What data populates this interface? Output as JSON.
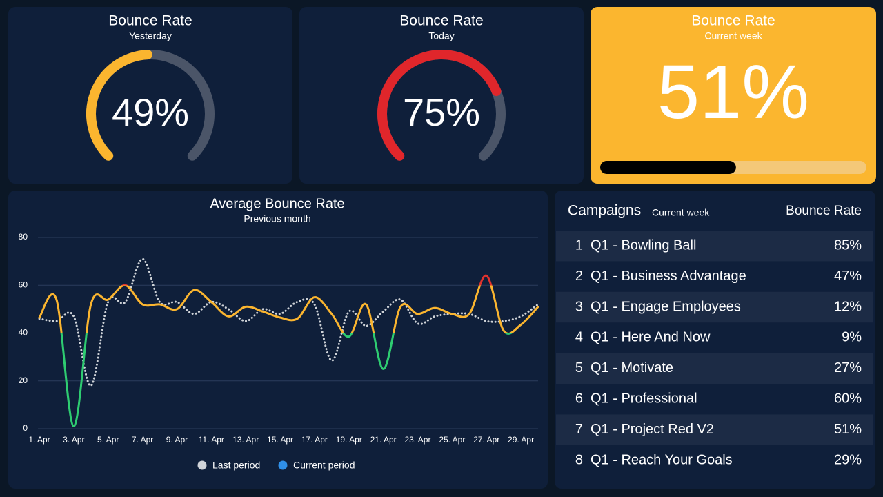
{
  "chart_data": [
    {
      "type": "gauge",
      "title": "Bounce Rate",
      "subtitle": "Yesterday",
      "values": [
        49
      ],
      "value_labels": [
        "49%"
      ],
      "ylim": [
        0,
        100
      ],
      "color": "#fbb52f",
      "track_color": "#4b5568"
    },
    {
      "type": "gauge",
      "title": "Bounce Rate",
      "subtitle": "Today",
      "values": [
        75
      ],
      "value_labels": [
        "75%"
      ],
      "ylim": [
        0,
        100
      ],
      "color": "#e0262b",
      "track_color": "#4b5568"
    },
    {
      "type": "progress",
      "title": "Bounce Rate",
      "subtitle": "Current week",
      "values": [
        51
      ],
      "value_labels": [
        "51%"
      ],
      "ylim": [
        0,
        100
      ],
      "color": "#000000",
      "track_color": "#f4c878"
    },
    {
      "type": "line",
      "title": "Average Bounce Rate",
      "subtitle": "Previous month",
      "categories": [
        "1. Apr",
        null,
        "3. Apr",
        null,
        "5. Apr",
        null,
        "7. Apr",
        null,
        "9. Apr",
        null,
        "11. Apr",
        null,
        "13. Apr",
        null,
        "15. Apr",
        null,
        "17. Apr",
        null,
        "19. Apr",
        null,
        "21. Apr",
        null,
        "23. Apr",
        null,
        "25. Apr",
        null,
        "27. Apr",
        null,
        "29. Apr",
        null
      ],
      "series": [
        {
          "name": "Last period",
          "color": "#cfd3d8",
          "dashed": true,
          "values": [
            46,
            45,
            47,
            18,
            53,
            53,
            71,
            53,
            53,
            48,
            53,
            50,
            45,
            50,
            48,
            53,
            52,
            28.5,
            49,
            43,
            49,
            54,
            44,
            47,
            48,
            48,
            45,
            45,
            47,
            52
          ]
        },
        {
          "name": "Current period",
          "color": "#2f8fe8",
          "zones": [
            {
              "value": 40,
              "color": "#2ecc71"
            },
            {
              "value": 60,
              "color": "#fbb52f"
            },
            {
              "color": "#e0322e"
            }
          ],
          "values": [
            46.5,
            54,
            1,
            52,
            54,
            60,
            52,
            52,
            50,
            58,
            53,
            47,
            51,
            49,
            46.5,
            46,
            55,
            48,
            38.5,
            52,
            25,
            51,
            48,
            50.5,
            48,
            48,
            64,
            41,
            43.5,
            51
          ]
        }
      ],
      "ylim": [
        0,
        80
      ],
      "yticks": [
        0,
        20,
        40,
        60,
        80
      ],
      "grid": true
    }
  ],
  "table": {
    "title": "Campaigns",
    "subtitle": "Current week",
    "header": "Bounce Rate",
    "rows": [
      {
        "rank": "1",
        "name": "Q1 - Bowling Ball",
        "value": "85%",
        "color": "#e0322e"
      },
      {
        "rank": "2",
        "name": "Q1 - Business Advantage",
        "value": "47%",
        "color": "#fbb52f"
      },
      {
        "rank": "3",
        "name": "Q1 - Engage Employees",
        "value": "12%",
        "color": "#2ecc71"
      },
      {
        "rank": "4",
        "name": "Q1 - Here And Now",
        "value": "9%",
        "color": "#2ecc71"
      },
      {
        "rank": "5",
        "name": "Q1 - Motivate",
        "value": "27%",
        "color": "#2ecc71"
      },
      {
        "rank": "6",
        "name": "Q1 - Professional",
        "value": "60%",
        "color": "#e0322e"
      },
      {
        "rank": "7",
        "name": "Q1 - Project Red V2",
        "value": "51%",
        "color": "#fbb52f"
      },
      {
        "rank": "8",
        "name": "Q1 - Reach Your Goals",
        "value": "29%",
        "color": "#2ecc71"
      }
    ]
  }
}
